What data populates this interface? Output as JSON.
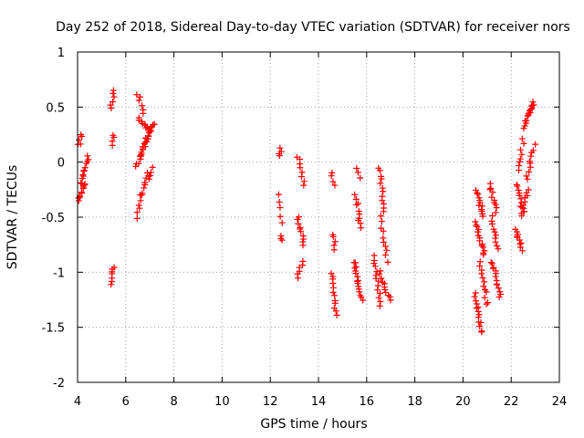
{
  "chart_data": {
    "type": "scatter",
    "title": "Day 252 of 2018, Sidereal Day-to-day VTEC variation (SDTVAR) for receiver nors",
    "xlabel": "GPS time / hours",
    "ylabel": "SDTVAR / TECUs",
    "xlim": [
      4,
      24
    ],
    "ylim": [
      -2,
      1
    ],
    "x_ticks": [
      4,
      6,
      8,
      10,
      12,
      14,
      16,
      18,
      20,
      22,
      24
    ],
    "y_ticks": [
      -2,
      -1.5,
      -1,
      -0.5,
      0,
      0.5,
      1
    ],
    "grid": true,
    "marker": "+",
    "color": "#ff0000",
    "segments": [
      {
        "x": [
          4.05,
          4.3
        ],
        "y": [
          -0.35,
          -0.2
        ],
        "n": 10
      },
      {
        "x": [
          4.05,
          4.15
        ],
        "y": [
          0.15,
          0.25
        ],
        "n": 5
      },
      {
        "x": [
          4.15,
          4.45
        ],
        "y": [
          -0.2,
          0.05
        ],
        "n": 12
      },
      {
        "x": [
          5.4,
          5.5
        ],
        "y": [
          0.48,
          0.66
        ],
        "n": 6
      },
      {
        "x": [
          5.45,
          5.5
        ],
        "y": [
          0.15,
          0.25
        ],
        "n": 4
      },
      {
        "x": [
          5.35,
          5.5
        ],
        "y": [
          -1.1,
          -0.95
        ],
        "n": 7
      },
      {
        "x": [
          6.5,
          6.65
        ],
        "y": [
          -0.5,
          -0.3
        ],
        "n": 6
      },
      {
        "x": [
          6.5,
          6.75
        ],
        "y": [
          0.62,
          0.45
        ],
        "n": 6
      },
      {
        "x": [
          6.45,
          6.9
        ],
        "y": [
          -0.05,
          0.2
        ],
        "n": 12
      },
      {
        "x": [
          6.55,
          7.05
        ],
        "y": [
          0.4,
          0.28
        ],
        "n": 10
      },
      {
        "x": [
          6.6,
          7.1
        ],
        "y": [
          0.05,
          0.35
        ],
        "n": 10
      },
      {
        "x": [
          6.7,
          7.15
        ],
        "y": [
          0.15,
          0.35
        ],
        "n": 8
      },
      {
        "x": [
          6.65,
          6.95
        ],
        "y": [
          -0.3,
          -0.1
        ],
        "n": 8
      },
      {
        "x": [
          7.0,
          7.1
        ],
        "y": [
          -0.15,
          -0.05
        ],
        "n": 4
      },
      {
        "x": [
          12.35,
          12.45
        ],
        "y": [
          0.05,
          0.12
        ],
        "n": 4
      },
      {
        "x": [
          12.35,
          12.5
        ],
        "y": [
          -0.3,
          -0.55
        ],
        "n": 5
      },
      {
        "x": [
          12.4,
          12.5
        ],
        "y": [
          -0.68,
          -0.72
        ],
        "n": 3
      },
      {
        "x": [
          13.15,
          13.4
        ],
        "y": [
          0.05,
          -0.2
        ],
        "n": 8
      },
      {
        "x": [
          13.15,
          13.4
        ],
        "y": [
          -0.5,
          -0.75
        ],
        "n": 10
      },
      {
        "x": [
          13.1,
          13.35
        ],
        "y": [
          -1.05,
          -0.9
        ],
        "n": 6
      },
      {
        "x": [
          14.55,
          14.65
        ],
        "y": [
          -0.1,
          -0.2
        ],
        "n": 4
      },
      {
        "x": [
          14.6,
          14.7
        ],
        "y": [
          -0.65,
          -0.8
        ],
        "n": 5
      },
      {
        "x": [
          14.55,
          14.75
        ],
        "y": [
          -1.0,
          -1.4
        ],
        "n": 12
      },
      {
        "x": [
          15.55,
          15.75
        ],
        "y": [
          -0.3,
          -0.6
        ],
        "n": 10
      },
      {
        "x": [
          15.5,
          15.8
        ],
        "y": [
          -0.9,
          -1.25
        ],
        "n": 16
      },
      {
        "x": [
          15.6,
          15.7
        ],
        "y": [
          -0.05,
          -0.15
        ],
        "n": 3
      },
      {
        "x": [
          16.3,
          16.6
        ],
        "y": [
          -0.85,
          -1.3
        ],
        "n": 14
      },
      {
        "x": [
          16.5,
          16.75
        ],
        "y": [
          -0.05,
          -0.45
        ],
        "n": 12
      },
      {
        "x": [
          16.6,
          16.85
        ],
        "y": [
          -0.5,
          -0.9
        ],
        "n": 10
      },
      {
        "x": [
          16.55,
          16.95
        ],
        "y": [
          -1.0,
          -1.25
        ],
        "n": 12
      },
      {
        "x": [
          20.5,
          20.75
        ],
        "y": [
          -1.2,
          -1.55
        ],
        "n": 14
      },
      {
        "x": [
          20.55,
          20.85
        ],
        "y": [
          -0.25,
          -0.5
        ],
        "n": 12
      },
      {
        "x": [
          20.55,
          20.9
        ],
        "y": [
          -0.55,
          -0.85
        ],
        "n": 14
      },
      {
        "x": [
          20.7,
          21.0
        ],
        "y": [
          -0.9,
          -1.3
        ],
        "n": 12
      },
      {
        "x": [
          21.1,
          21.4
        ],
        "y": [
          -0.2,
          -0.45
        ],
        "n": 10
      },
      {
        "x": [
          21.2,
          21.45
        ],
        "y": [
          -0.5,
          -0.8
        ],
        "n": 10
      },
      {
        "x": [
          21.2,
          21.55
        ],
        "y": [
          -0.9,
          -1.22
        ],
        "n": 14
      },
      {
        "x": [
          22.2,
          22.45
        ],
        "y": [
          -0.6,
          -0.8
        ],
        "n": 10
      },
      {
        "x": [
          22.2,
          22.5
        ],
        "y": [
          -0.2,
          -0.45
        ],
        "n": 10
      },
      {
        "x": [
          22.3,
          22.5
        ],
        "y": [
          -0.08,
          0.2
        ],
        "n": 8
      },
      {
        "x": [
          22.4,
          22.7
        ],
        "y": [
          -0.5,
          -0.25
        ],
        "n": 10
      },
      {
        "x": [
          22.55,
          22.8
        ],
        "y": [
          0.3,
          0.5
        ],
        "n": 10
      },
      {
        "x": [
          22.65,
          22.95
        ],
        "y": [
          -0.15,
          0.15
        ],
        "n": 10
      },
      {
        "x": [
          22.8,
          22.95
        ],
        "y": [
          0.45,
          0.55
        ],
        "n": 6
      }
    ]
  }
}
